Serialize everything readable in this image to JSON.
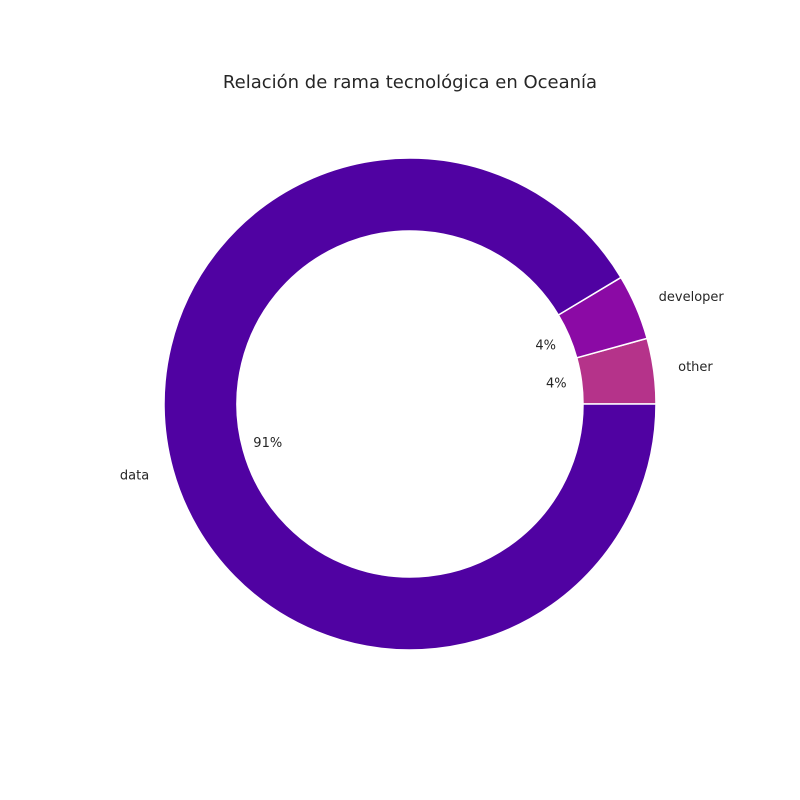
{
  "chart_data": {
    "type": "pie",
    "style": "donut",
    "title": "Relación de rama tecnológica en Oceanía",
    "slices": [
      {
        "label": "other",
        "value": 4.3,
        "pct_label": "4%",
        "color": "#b5338a"
      },
      {
        "label": "developer",
        "value": 4.3,
        "pct_label": "4%",
        "color": "#8b0aa5"
      },
      {
        "label": "data",
        "value": 91.4,
        "pct_label": "91%",
        "color": "#5002a2"
      }
    ]
  }
}
